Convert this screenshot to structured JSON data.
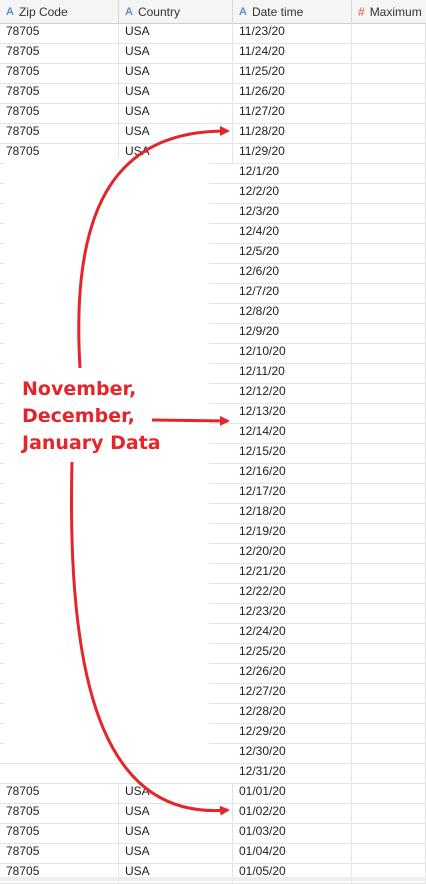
{
  "columns": [
    {
      "name": "Zip Code",
      "type_icon": "string-type-icon",
      "type_glyph": "A"
    },
    {
      "name": "Country",
      "type_icon": "string-type-icon",
      "type_glyph": "A"
    },
    {
      "name": "Date time",
      "type_icon": "string-type-icon",
      "type_glyph": "A"
    },
    {
      "name": "Maximum",
      "type_icon": "numeric-type-icon",
      "type_glyph": "#"
    }
  ],
  "rows": [
    {
      "zip": "78705",
      "country": "USA",
      "date": "11/23/20"
    },
    {
      "zip": "78705",
      "country": "USA",
      "date": "11/24/20"
    },
    {
      "zip": "78705",
      "country": "USA",
      "date": "11/25/20"
    },
    {
      "zip": "78705",
      "country": "USA",
      "date": "11/26/20"
    },
    {
      "zip": "78705",
      "country": "USA",
      "date": "11/27/20"
    },
    {
      "zip": "78705",
      "country": "USA",
      "date": "11/28/20"
    },
    {
      "zip": "78705",
      "country": "USA",
      "date": "11/29/20"
    },
    {
      "zip": "",
      "country": "",
      "date": "12/1/20"
    },
    {
      "zip": "",
      "country": "",
      "date": "12/2/20"
    },
    {
      "zip": "",
      "country": "",
      "date": "12/3/20"
    },
    {
      "zip": "",
      "country": "",
      "date": "12/4/20"
    },
    {
      "zip": "",
      "country": "",
      "date": "12/5/20"
    },
    {
      "zip": "",
      "country": "",
      "date": "12/6/20"
    },
    {
      "zip": "",
      "country": "",
      "date": "12/7/20"
    },
    {
      "zip": "",
      "country": "",
      "date": "12/8/20"
    },
    {
      "zip": "",
      "country": "",
      "date": "12/9/20"
    },
    {
      "zip": "",
      "country": "",
      "date": "12/10/20"
    },
    {
      "zip": "",
      "country": "",
      "date": "12/11/20"
    },
    {
      "zip": "",
      "country": "",
      "date": "12/12/20"
    },
    {
      "zip": "",
      "country": "",
      "date": "12/13/20"
    },
    {
      "zip": "",
      "country": "",
      "date": "12/14/20"
    },
    {
      "zip": "",
      "country": "",
      "date": "12/15/20"
    },
    {
      "zip": "",
      "country": "",
      "date": "12/16/20"
    },
    {
      "zip": "",
      "country": "",
      "date": "12/17/20"
    },
    {
      "zip": "",
      "country": "",
      "date": "12/18/20"
    },
    {
      "zip": "",
      "country": "",
      "date": "12/19/20"
    },
    {
      "zip": "",
      "country": "",
      "date": "12/20/20"
    },
    {
      "zip": "",
      "country": "",
      "date": "12/21/20"
    },
    {
      "zip": "",
      "country": "",
      "date": "12/22/20"
    },
    {
      "zip": "",
      "country": "",
      "date": "12/23/20"
    },
    {
      "zip": "",
      "country": "",
      "date": "12/24/20"
    },
    {
      "zip": "",
      "country": "",
      "date": "12/25/20"
    },
    {
      "zip": "",
      "country": "",
      "date": "12/26/20"
    },
    {
      "zip": "",
      "country": "",
      "date": "12/27/20"
    },
    {
      "zip": "",
      "country": "",
      "date": "12/28/20"
    },
    {
      "zip": "",
      "country": "",
      "date": "12/29/20"
    },
    {
      "zip": "",
      "country": "",
      "date": "12/30/20"
    },
    {
      "zip": "",
      "country": "",
      "date": "12/31/20"
    },
    {
      "zip": "78705",
      "country": "USA",
      "date": "01/01/20"
    },
    {
      "zip": "78705",
      "country": "USA",
      "date": "01/02/20"
    },
    {
      "zip": "78705",
      "country": "USA",
      "date": "01/03/20"
    },
    {
      "zip": "78705",
      "country": "USA",
      "date": "01/04/20"
    },
    {
      "zip": "78705",
      "country": "USA",
      "date": "01/05/20"
    }
  ],
  "annotation": {
    "lines": [
      "November,",
      "December,",
      "January Data"
    ],
    "color": "#e3262b"
  }
}
